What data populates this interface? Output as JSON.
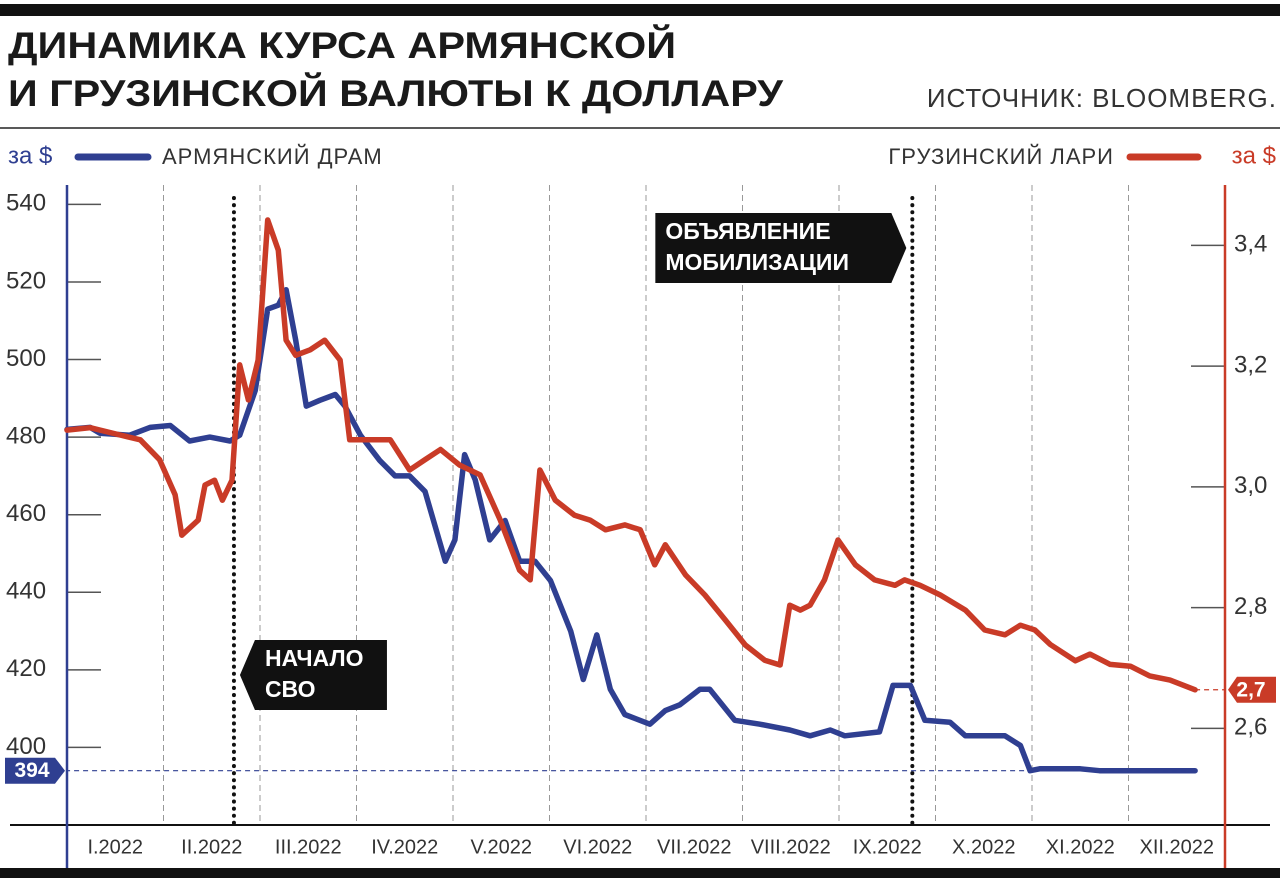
{
  "chart_data": {
    "type": "line",
    "title": [
      "ДИНАМИКА КУРСА АРМЯНСКОЙ",
      "И ГРУЗИНСКОЙ ВАЛЮТЫ К ДОЛЛАРУ"
    ],
    "source": "ИСТОЧНИК: BLOOMBERG.",
    "ylabel": "за $",
    "y2label": "за $",
    "categories": [
      "I.2022",
      "II.2022",
      "III.2022",
      "IV.2022",
      "V.2022",
      "VI.2022",
      "VII.2022",
      "VIII.2022",
      "IX.2022",
      "X.2022",
      "XI.2022",
      "XII.2022"
    ],
    "xlim": [
      0,
      12
    ],
    "ylim": [
      380,
      545
    ],
    "yticks": [
      400,
      420,
      440,
      460,
      480,
      500,
      520,
      540
    ],
    "y2lim": [
      2.44,
      3.5
    ],
    "y2ticks": [
      {
        "value": 2.6,
        "label": "2,6"
      },
      {
        "value": 2.8,
        "label": "2,8"
      },
      {
        "value": 3.0,
        "label": "3,0"
      },
      {
        "value": 3.2,
        "label": "3,2"
      },
      {
        "value": 3.4,
        "label": "3,4"
      }
    ],
    "series": [
      {
        "name": "АРМЯНСКИЙ ДРАМ",
        "color": "#2f3f91",
        "x": [
          0,
          0.24,
          0.34,
          0.65,
          0.86,
          1.07,
          1.27,
          1.48,
          1.69,
          1.79,
          1.95,
          2.08,
          2.19,
          2.27,
          2.37,
          2.48,
          2.62,
          2.78,
          2.88,
          3.04,
          3.24,
          3.4,
          3.55,
          3.71,
          3.92,
          4.02,
          4.12,
          4.23,
          4.38,
          4.54,
          4.69,
          4.85,
          5.01,
          5.22,
          5.35,
          5.49,
          5.63,
          5.78,
          6.04,
          6.2,
          6.35,
          6.56,
          6.66,
          6.92,
          7.18,
          7.49,
          7.7,
          7.91,
          8.06,
          8.42,
          8.56,
          8.74,
          8.89,
          9.15,
          9.31,
          9.72,
          9.88,
          9.98,
          10.08,
          10.29,
          10.5,
          10.7,
          11.12,
          11.33,
          11.53,
          11.69
        ],
        "values": [
          482,
          482.5,
          481,
          480.5,
          482.5,
          483,
          479,
          480,
          479,
          480.5,
          492,
          513,
          514,
          518,
          505,
          488,
          489.5,
          491,
          488,
          480.5,
          474,
          470,
          470,
          466,
          448,
          453.5,
          475.5,
          469,
          453.5,
          458.5,
          448,
          448,
          443,
          430,
          417.5,
          429,
          415,
          408.5,
          406,
          409.5,
          411,
          415,
          415,
          407,
          406,
          404.5,
          403,
          404.5,
          403,
          404,
          416,
          416,
          407,
          406.5,
          403,
          403,
          400.5,
          394,
          394.5,
          394.5,
          394.5,
          394,
          394,
          394,
          394,
          394
        ],
        "value_labels": [
          null,
          null,
          null,
          null,
          null,
          null,
          null,
          null,
          null,
          null,
          null,
          null,
          null,
          null,
          null,
          null,
          null,
          null,
          null,
          null,
          null,
          null,
          null,
          null,
          null,
          null,
          null,
          null,
          null,
          null,
          null,
          null,
          null,
          null,
          null,
          null,
          null,
          null,
          null,
          null,
          null,
          null,
          null,
          null,
          null,
          null,
          null,
          null,
          null,
          null,
          null,
          null,
          null,
          null,
          null,
          null,
          null,
          null,
          null,
          null,
          null,
          null,
          null,
          null,
          null,
          "394"
        ]
      },
      {
        "name": "ГРУЗИНСКИЙ ЛАРИ",
        "color": "#c93b27",
        "axis": "y2",
        "x": [
          0,
          0.24,
          0.55,
          0.76,
          0.96,
          1.12,
          1.19,
          1.36,
          1.43,
          1.53,
          1.61,
          1.71,
          1.79,
          1.88,
          1.98,
          2.08,
          2.19,
          2.27,
          2.37,
          2.52,
          2.67,
          2.83,
          2.93,
          3.14,
          3.35,
          3.55,
          3.71,
          3.87,
          4.07,
          4.28,
          4.49,
          4.69,
          4.8,
          4.9,
          5.06,
          5.26,
          5.42,
          5.58,
          5.78,
          5.94,
          6.09,
          6.2,
          6.41,
          6.61,
          6.82,
          7.03,
          7.23,
          7.39,
          7.49,
          7.6,
          7.7,
          7.85,
          7.99,
          8.17,
          8.37,
          8.58,
          8.68,
          8.84,
          9.05,
          9.31,
          9.51,
          9.72,
          9.88,
          10.03,
          10.19,
          10.45,
          10.6,
          10.81,
          11.02,
          11.22,
          11.43,
          11.69
        ],
        "values": [
          3.094,
          3.098,
          3.086,
          3.078,
          3.045,
          2.987,
          2.92,
          2.945,
          3.003,
          3.011,
          2.978,
          3.011,
          3.202,
          3.144,
          3.21,
          3.442,
          3.392,
          3.243,
          3.218,
          3.227,
          3.243,
          3.21,
          3.078,
          3.078,
          3.078,
          3.028,
          3.045,
          3.062,
          3.036,
          3.02,
          2.945,
          2.862,
          2.846,
          3.028,
          2.978,
          2.953,
          2.945,
          2.929,
          2.937,
          2.929,
          2.871,
          2.904,
          2.854,
          2.821,
          2.78,
          2.738,
          2.713,
          2.705,
          2.804,
          2.796,
          2.804,
          2.846,
          2.912,
          2.871,
          2.846,
          2.837,
          2.846,
          2.837,
          2.821,
          2.796,
          2.763,
          2.755,
          2.771,
          2.763,
          2.739,
          2.712,
          2.723,
          2.706,
          2.703,
          2.687,
          2.68,
          2.664
        ],
        "value_labels": [
          null,
          null,
          null,
          null,
          null,
          null,
          null,
          null,
          null,
          null,
          null,
          null,
          null,
          null,
          null,
          null,
          null,
          null,
          null,
          null,
          null,
          null,
          null,
          null,
          null,
          null,
          null,
          null,
          null,
          null,
          null,
          null,
          null,
          null,
          null,
          null,
          null,
          null,
          null,
          null,
          null,
          null,
          null,
          null,
          null,
          null,
          null,
          null,
          null,
          null,
          null,
          null,
          null,
          null,
          null,
          null,
          null,
          null,
          null,
          null,
          null,
          null,
          null,
          null,
          null,
          null,
          null,
          null,
          null,
          null,
          null,
          "2,7"
        ]
      }
    ],
    "annotations": [
      {
        "text": [
          "НАЧАЛО",
          "СВО"
        ],
        "x": 1.73
      },
      {
        "text": [
          "ОБЪЯВЛЕНИЕ",
          "МОБИЛИЗАЦИИ"
        ],
        "x": 8.76
      }
    ]
  }
}
